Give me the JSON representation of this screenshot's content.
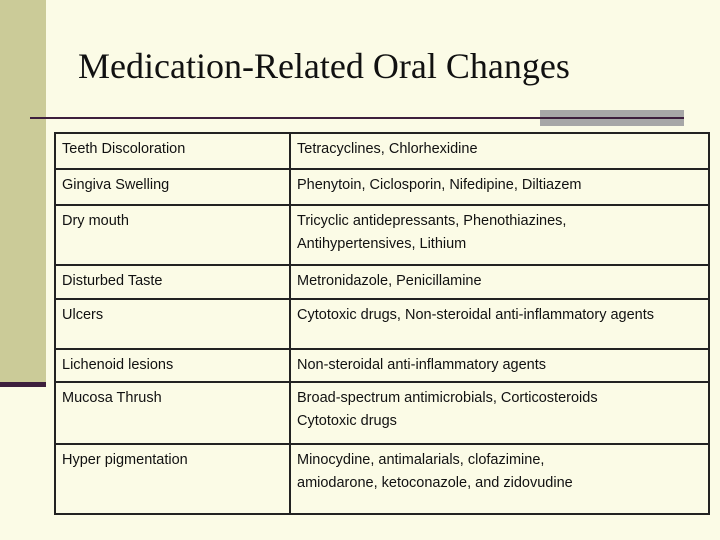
{
  "title": "Medication-Related Oral Changes",
  "colors": {
    "background": "#fbfbe6",
    "sidebar": "#cbcb98",
    "accent": "#3d1f3d",
    "rule_block": "#a7a7a7"
  },
  "rows": [
    {
      "condition": "Teeth Discoloration",
      "drugs": [
        "Tetracyclines, Chlorhexidine"
      ]
    },
    {
      "condition": "Gingiva Swelling",
      "drugs": [
        "Phenytoin, Ciclosporin, Nifedipine, Diltiazem"
      ]
    },
    {
      "condition": "Dry mouth",
      "drugs": [
        "Tricyclic antidepressants, Phenothiazines,",
        "Antihypertensives, Lithium"
      ]
    },
    {
      "condition": "Disturbed Taste",
      "drugs": [
        "Metronidazole, Penicillamine"
      ]
    },
    {
      "condition": "Ulcers",
      "drugs": [
        "Cytotoxic drugs, Non-steroidal anti-inflammatory agents"
      ]
    },
    {
      "condition": "Lichenoid lesions",
      "drugs": [
        "Non-steroidal anti-inflammatory agents"
      ]
    },
    {
      "condition": "Mucosa Thrush",
      "drugs": [
        "Broad-spectrum antimicrobials, Corticosteroids",
        "Cytotoxic drugs"
      ]
    },
    {
      "condition": "Hyper pigmentation",
      "drugs": [
        "Minocydine, antimalarials, clofazimine,",
        "amiodarone, ketoconazole, and zidovudine"
      ]
    }
  ]
}
